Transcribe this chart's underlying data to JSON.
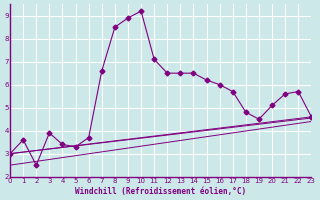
{
  "xlabel": "Windchill (Refroidissement éolien,°C)",
  "ylabel": "",
  "bg_color": "#cce8e8",
  "line_color": "#800080",
  "grid_color": "#ffffff",
  "xlim": [
    0,
    23
  ],
  "ylim": [
    2,
    9.5
  ],
  "yticks": [
    2,
    3,
    4,
    5,
    6,
    7,
    8,
    9
  ],
  "xticks": [
    0,
    1,
    2,
    3,
    4,
    5,
    6,
    7,
    8,
    9,
    10,
    11,
    12,
    13,
    14,
    15,
    16,
    17,
    18,
    19,
    20,
    21,
    22,
    23
  ],
  "line1_x": [
    0,
    1,
    2,
    3,
    4,
    5,
    6,
    7,
    8,
    9,
    10,
    11,
    12,
    13,
    14,
    15,
    16,
    17,
    18,
    19,
    20,
    21,
    22,
    23
  ],
  "line1_y": [
    3.0,
    3.6,
    2.5,
    3.9,
    3.4,
    3.3,
    3.7,
    6.6,
    8.5,
    8.9,
    9.2,
    7.1,
    6.5,
    6.5,
    6.5,
    6.2,
    6.0,
    5.7,
    4.8,
    4.5,
    5.1,
    5.6,
    5.7,
    4.6
  ],
  "line2_x": [
    0,
    23
  ],
  "line2_y": [
    3.0,
    4.6
  ],
  "line3_x": [
    0,
    23
  ],
  "line3_y": [
    2.5,
    4.4
  ],
  "line4_x": [
    0,
    23
  ],
  "line4_y": [
    3.0,
    4.55
  ]
}
